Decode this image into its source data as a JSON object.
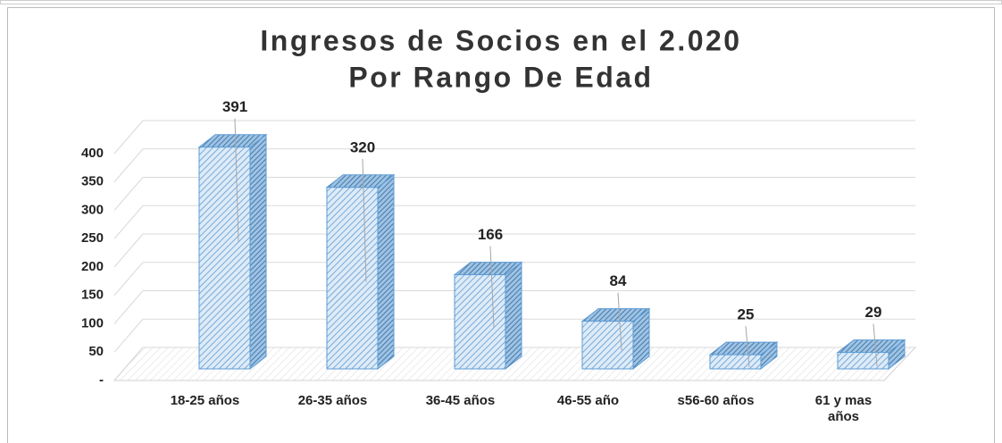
{
  "chart_data": {
    "type": "bar3d",
    "title": "Ingresos de Socios en el 2.020",
    "subtitle": "Por Rango De Edad",
    "categories": [
      "18-25 años",
      "26-35 años",
      "36-45 años",
      "46-55 año",
      "s56-60 años",
      "61 y mas años"
    ],
    "values": [
      391,
      320,
      166,
      84,
      25,
      29
    ],
    "color": "#5b9bd5",
    "ylim": [
      0,
      400
    ],
    "yticks": [
      {
        "value": 0,
        "label": "-"
      },
      50,
      100,
      150,
      200,
      250,
      300,
      350,
      400
    ],
    "grid": true
  }
}
